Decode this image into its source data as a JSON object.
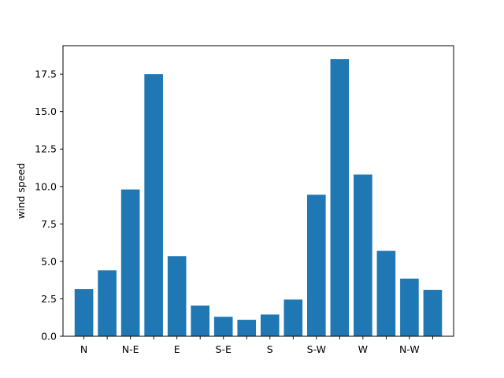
{
  "chart_data": {
    "type": "bar",
    "title": "",
    "xlabel": "",
    "ylabel": "wind speed",
    "categories": [
      "N",
      "",
      "N-E",
      "",
      "E",
      "",
      "S-E",
      "",
      "S",
      "",
      "S-W",
      "",
      "W",
      "",
      "N-W",
      ""
    ],
    "values": [
      3.15,
      4.4,
      9.8,
      17.5,
      5.35,
      2.05,
      1.3,
      1.1,
      1.45,
      2.45,
      9.45,
      18.5,
      10.8,
      5.7,
      3.85,
      3.1
    ],
    "ylim": [
      0,
      19.4
    ],
    "yticks": [
      "0.0",
      "2.5",
      "5.0",
      "7.5",
      "10.0",
      "12.5",
      "15.0",
      "17.5"
    ],
    "bar_color": "#1f77b4",
    "grid": false,
    "legend": false
  }
}
